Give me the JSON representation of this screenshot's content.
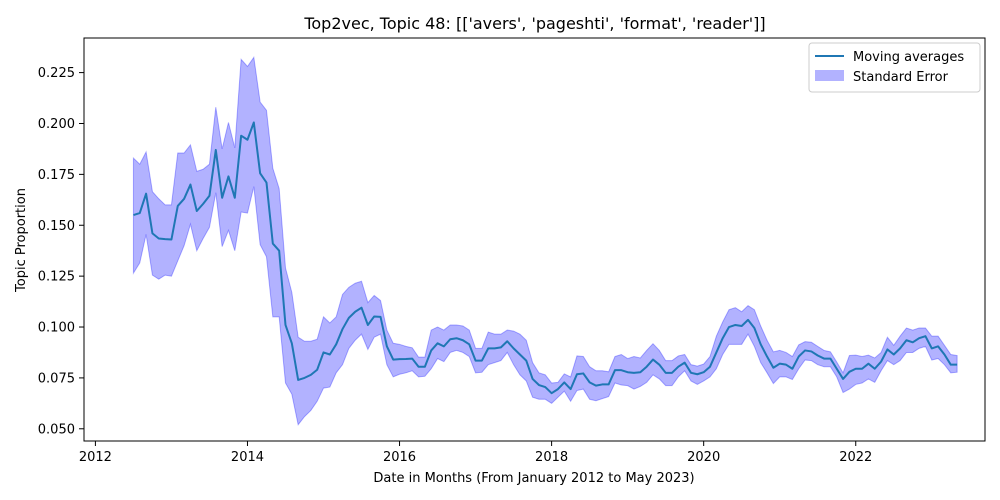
{
  "chart_data": {
    "type": "line",
    "title": "Top2vec, Topic 48: [['avers', 'pageshti', 'format', 'reader']]",
    "xlabel": "Date in Months (From January 2012 to May 2023)",
    "ylabel": "Topic Proportion",
    "xlim": [
      2011.85,
      2023.7
    ],
    "ylim": [
      0.044,
      0.242
    ],
    "xticks": [
      2012,
      2014,
      2016,
      2018,
      2020,
      2022
    ],
    "xtick_labels": [
      "2012",
      "2014",
      "2016",
      "2018",
      "2020",
      "2022"
    ],
    "yticks": [
      0.05,
      0.075,
      0.1,
      0.125,
      0.15,
      0.175,
      0.2,
      0.225
    ],
    "ytick_labels": [
      "0.050",
      "0.075",
      "0.100",
      "0.125",
      "0.150",
      "0.175",
      "0.200",
      "0.225"
    ],
    "grid": false,
    "legend_position": "top-right",
    "legend": [
      "Moving averages",
      "Standard Error"
    ],
    "colors": {
      "line": "#1f77b4",
      "band": "#0000ff",
      "band_opacity": 0.3
    },
    "series": [
      {
        "name": "Moving averages",
        "x": [
          "2012-07",
          "2012-08",
          "2012-09",
          "2012-10",
          "2012-11",
          "2012-12",
          "2013-01",
          "2013-02",
          "2013-03",
          "2013-04",
          "2013-05",
          "2013-06",
          "2013-07",
          "2013-08",
          "2013-09",
          "2013-10",
          "2013-11",
          "2013-12",
          "2014-01",
          "2014-02",
          "2014-03",
          "2014-04",
          "2014-05",
          "2014-06",
          "2014-07",
          "2014-08",
          "2014-09",
          "2014-10",
          "2014-11",
          "2014-12",
          "2015-01",
          "2015-02",
          "2015-03",
          "2015-04",
          "2015-05",
          "2015-06",
          "2015-07",
          "2015-08",
          "2015-09",
          "2015-10",
          "2015-11",
          "2015-12",
          "2016-01",
          "2016-02",
          "2016-03",
          "2016-04",
          "2016-05",
          "2016-06",
          "2016-07",
          "2016-08",
          "2016-09",
          "2016-10",
          "2016-11",
          "2016-12",
          "2017-01",
          "2017-02",
          "2017-03",
          "2017-04",
          "2017-05",
          "2017-06",
          "2017-07",
          "2017-08",
          "2017-09",
          "2017-10",
          "2017-11",
          "2017-12",
          "2018-01",
          "2018-02",
          "2018-03",
          "2018-04",
          "2018-05",
          "2018-06",
          "2018-07",
          "2018-08",
          "2018-09",
          "2018-10",
          "2018-11",
          "2018-12",
          "2019-01",
          "2019-02",
          "2019-03",
          "2019-04",
          "2019-05",
          "2019-06",
          "2019-07",
          "2019-08",
          "2019-09",
          "2019-10",
          "2019-11",
          "2019-12",
          "2020-01",
          "2020-02",
          "2020-03",
          "2020-04",
          "2020-05",
          "2020-06",
          "2020-07",
          "2020-08",
          "2020-09",
          "2020-10",
          "2020-11",
          "2020-12",
          "2021-01",
          "2021-02",
          "2021-03",
          "2021-04",
          "2021-05",
          "2021-06",
          "2021-07",
          "2021-08",
          "2021-09",
          "2021-10",
          "2021-11",
          "2021-12",
          "2022-01",
          "2022-02",
          "2022-03",
          "2022-04",
          "2022-05",
          "2022-06",
          "2022-07",
          "2022-08",
          "2022-09",
          "2022-10",
          "2022-11",
          "2022-12",
          "2023-01",
          "2023-02",
          "2023-03",
          "2023-04",
          "2023-05"
        ],
        "y": [
          0.155,
          0.156,
          0.1655,
          0.146,
          0.1435,
          0.1432,
          0.143,
          0.1595,
          0.163,
          0.17,
          0.157,
          0.1605,
          0.1645,
          0.187,
          0.1635,
          0.174,
          0.1635,
          0.194,
          0.192,
          0.2005,
          0.1755,
          0.171,
          0.141,
          0.1375,
          0.101,
          0.092,
          0.074,
          0.075,
          0.0765,
          0.079,
          0.0875,
          0.0865,
          0.0915,
          0.099,
          0.1045,
          0.1075,
          0.1095,
          0.101,
          0.1052,
          0.105,
          0.0905,
          0.084,
          0.0842,
          0.0843,
          0.0845,
          0.0805,
          0.0805,
          0.0885,
          0.092,
          0.0905,
          0.094,
          0.0945,
          0.0935,
          0.0915,
          0.0835,
          0.0835,
          0.0895,
          0.0895,
          0.09,
          0.093,
          0.0895,
          0.0865,
          0.0835,
          0.0745,
          0.0715,
          0.0705,
          0.0675,
          0.0695,
          0.0728,
          0.0695,
          0.0768,
          0.0772,
          0.0728,
          0.0712,
          0.0718,
          0.0718,
          0.0788,
          0.0788,
          0.0778,
          0.0775,
          0.0778,
          0.0805,
          0.084,
          0.0815,
          0.0775,
          0.0775,
          0.0805,
          0.0825,
          0.0775,
          0.0768,
          0.0778,
          0.0805,
          0.0875,
          0.0945,
          0.1,
          0.101,
          0.1005,
          0.1035,
          0.0995,
          0.0915,
          0.0855,
          0.08,
          0.082,
          0.0815,
          0.0795,
          0.0855,
          0.0885,
          0.088,
          0.086,
          0.0845,
          0.0845,
          0.0795,
          0.0745,
          0.078,
          0.0795,
          0.0795,
          0.082,
          0.0795,
          0.083,
          0.089,
          0.0865,
          0.0895,
          0.0935,
          0.0925,
          0.0945,
          0.0955,
          0.0895,
          0.0905,
          0.0865,
          0.0815,
          0.0815
        ]
      },
      {
        "name": "Standard Error",
        "upper": [
          0.183,
          0.18,
          0.186,
          0.1665,
          0.163,
          0.16,
          0.16,
          0.1855,
          0.1855,
          0.1895,
          0.1765,
          0.1775,
          0.18,
          0.208,
          0.1875,
          0.2005,
          0.188,
          0.2315,
          0.228,
          0.2325,
          0.2105,
          0.2065,
          0.178,
          0.168,
          0.129,
          0.117,
          0.095,
          0.093,
          0.093,
          0.094,
          0.105,
          0.102,
          0.105,
          0.116,
          0.1195,
          0.1215,
          0.1225,
          0.112,
          0.1155,
          0.113,
          0.0985,
          0.092,
          0.0915,
          0.0905,
          0.0898,
          0.0852,
          0.0852,
          0.0985,
          0.1,
          0.0985,
          0.101,
          0.101,
          0.1005,
          0.0985,
          0.0895,
          0.0895,
          0.0975,
          0.0965,
          0.0965,
          0.0985,
          0.098,
          0.0965,
          0.0935,
          0.0825,
          0.0775,
          0.0765,
          0.0725,
          0.0728,
          0.077,
          0.0755,
          0.0858,
          0.0855,
          0.0805,
          0.0785,
          0.0785,
          0.078,
          0.0855,
          0.0865,
          0.0845,
          0.0855,
          0.0848,
          0.0885,
          0.0918,
          0.0885,
          0.0835,
          0.0835,
          0.0858,
          0.0865,
          0.0815,
          0.0808,
          0.0818,
          0.0855,
          0.0955,
          0.1025,
          0.1085,
          0.1095,
          0.1075,
          0.1105,
          0.1085,
          0.1005,
          0.0935,
          0.0878,
          0.0885,
          0.0875,
          0.0855,
          0.0912,
          0.0928,
          0.0925,
          0.0905,
          0.0885,
          0.0878,
          0.0828,
          0.0775,
          0.086,
          0.0862,
          0.0855,
          0.0862,
          0.0848,
          0.0875,
          0.095,
          0.091,
          0.0955,
          0.0995,
          0.0985,
          0.0995,
          0.0995,
          0.0955,
          0.0955,
          0.091,
          0.0865,
          0.086
        ]
      },
      {
        "name": "Standard Error lower",
        "lower": [
          0.1265,
          0.1315,
          0.1455,
          0.1255,
          0.1235,
          0.1255,
          0.125,
          0.1325,
          0.14,
          0.1505,
          0.1375,
          0.1435,
          0.149,
          0.166,
          0.1395,
          0.1475,
          0.1375,
          0.1565,
          0.156,
          0.169,
          0.1405,
          0.1345,
          0.105,
          0.105,
          0.0725,
          0.067,
          0.052,
          0.056,
          0.059,
          0.0635,
          0.07,
          0.0705,
          0.0775,
          0.0815,
          0.0895,
          0.0935,
          0.0965,
          0.089,
          0.095,
          0.0965,
          0.0815,
          0.0755,
          0.0768,
          0.0775,
          0.0785,
          0.0755,
          0.0758,
          0.0795,
          0.0845,
          0.083,
          0.0875,
          0.0885,
          0.0875,
          0.0855,
          0.0775,
          0.0778,
          0.0815,
          0.0825,
          0.0835,
          0.0875,
          0.0815,
          0.0765,
          0.0735,
          0.0655,
          0.0645,
          0.0645,
          0.0625,
          0.0655,
          0.0685,
          0.0635,
          0.0688,
          0.0695,
          0.0645,
          0.0638,
          0.0648,
          0.0658,
          0.0725,
          0.0715,
          0.0712,
          0.0695,
          0.0708,
          0.0728,
          0.0765,
          0.0745,
          0.0712,
          0.0712,
          0.0755,
          0.0785,
          0.0735,
          0.0718,
          0.0735,
          0.0755,
          0.0795,
          0.0865,
          0.0915,
          0.0915,
          0.0915,
          0.0965,
          0.0905,
          0.0825,
          0.0775,
          0.0722,
          0.0755,
          0.0755,
          0.0742,
          0.0795,
          0.0838,
          0.0835,
          0.0815,
          0.0805,
          0.0805,
          0.0755,
          0.0678,
          0.0695,
          0.0718,
          0.0725,
          0.0745,
          0.0728,
          0.0785,
          0.0835,
          0.0815,
          0.0835,
          0.0875,
          0.0875,
          0.0895,
          0.0905,
          0.0838,
          0.0845,
          0.0815,
          0.0775,
          0.0778
        ]
      }
    ]
  }
}
